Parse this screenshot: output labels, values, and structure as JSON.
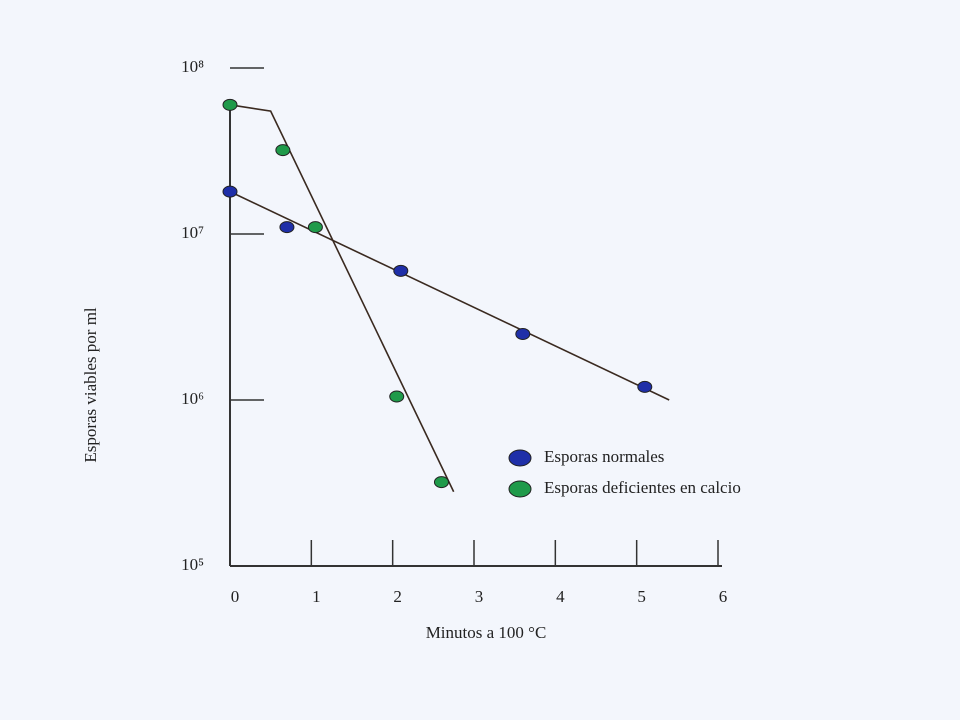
{
  "chart_data": {
    "type": "scatter",
    "x_label": "Minutos a 100 °C",
    "y_label": "Esporas viables por ml",
    "log_y": true,
    "legend": "right",
    "xlim": [
      0,
      6
    ],
    "xticks": [
      0,
      1,
      2,
      3,
      4,
      5,
      6
    ],
    "ylim": [
      100000,
      100000000
    ],
    "yticks": [
      {
        "value": 100000,
        "label": "10⁵"
      },
      {
        "value": 1000000,
        "label": "10⁶"
      },
      {
        "value": 10000000,
        "label": "10⁷"
      },
      {
        "value": 100000000,
        "label": "10⁸"
      }
    ],
    "series": [
      {
        "name": "Esporas normales",
        "color": "#1f2fa8",
        "x": [
          0,
          0.7,
          2.1,
          3.6,
          5.1
        ],
        "values": [
          18000000,
          11000000,
          6000000,
          2500000,
          1200000
        ],
        "trend_x": [
          0,
          5.4
        ],
        "trend_values": [
          18000000,
          1000000
        ]
      },
      {
        "name": "Esporas deficientes en calcio",
        "color": "#1f9a4a",
        "x": [
          0,
          0.65,
          1.05,
          2.05,
          2.6
        ],
        "values": [
          60000000,
          32000000,
          11000000,
          1050000,
          320000
        ],
        "trend_x": [
          0,
          0.5,
          2.75
        ],
        "trend_values": [
          60000000,
          55000000,
          280000
        ]
      }
    ]
  }
}
